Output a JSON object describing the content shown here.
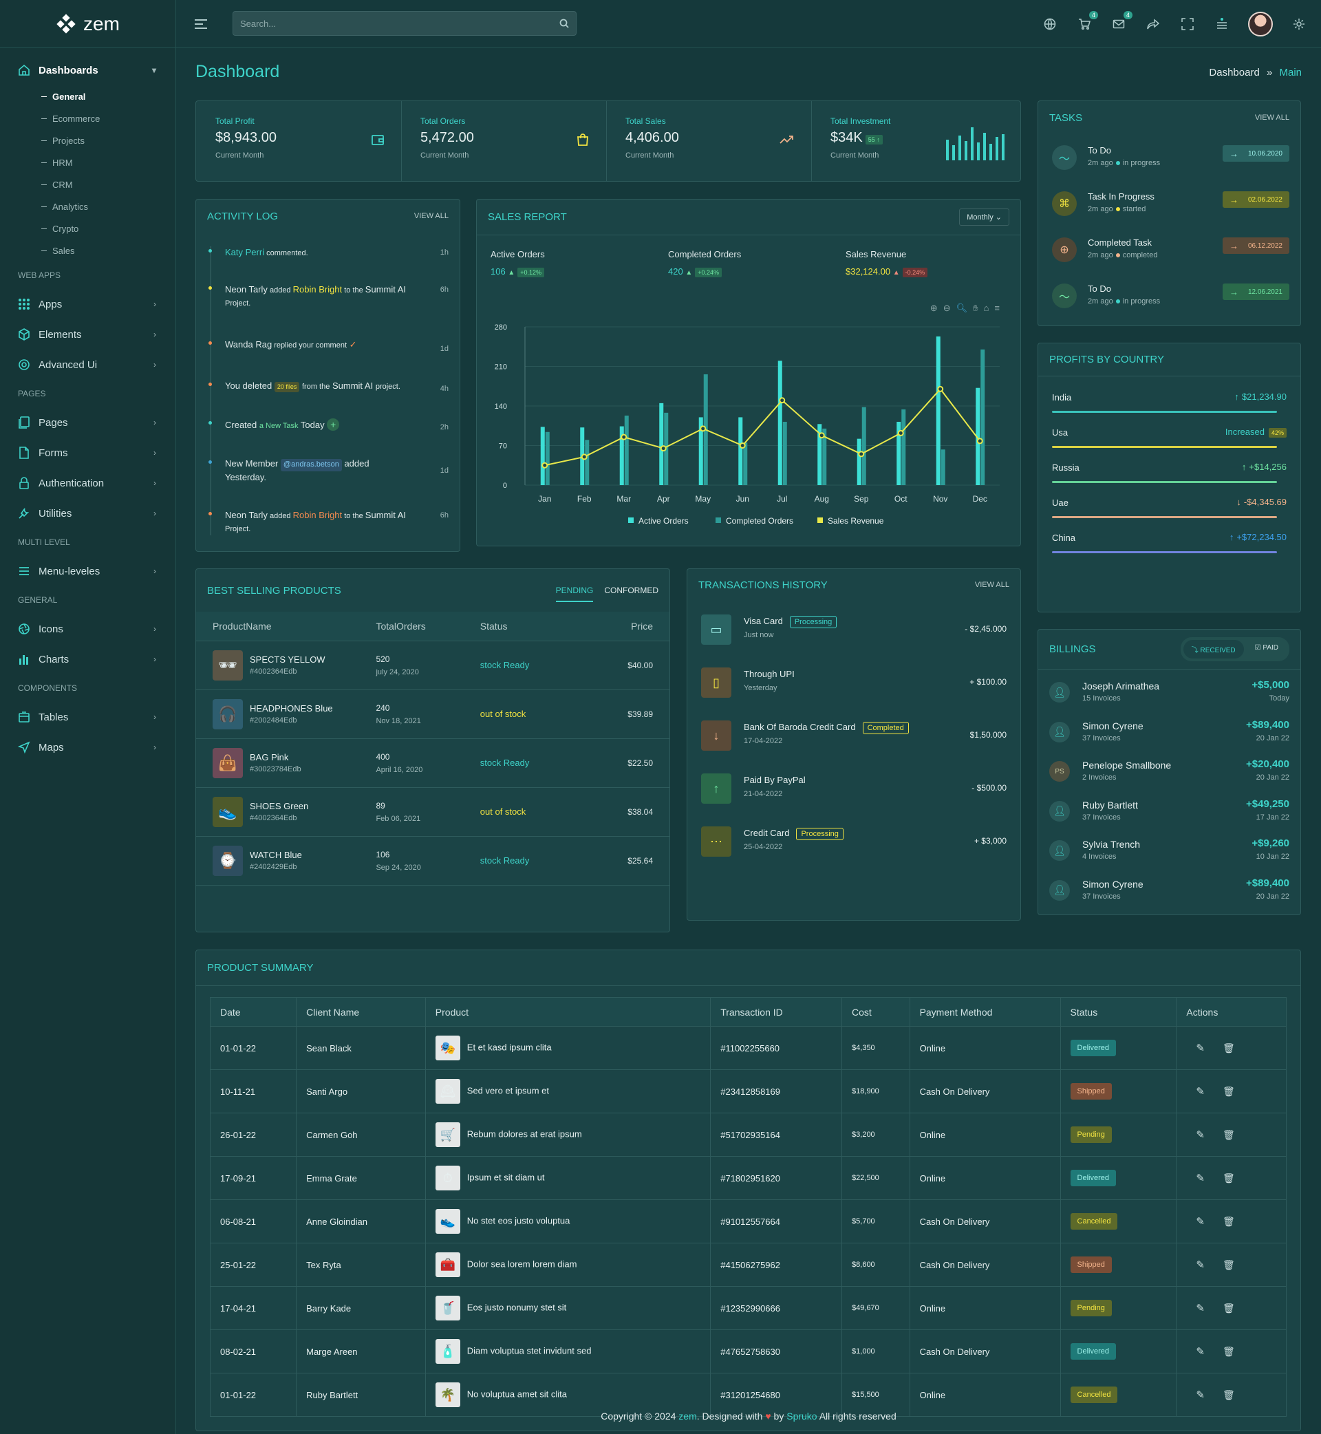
{
  "brand": "zem",
  "sidebar": {
    "dashboards": "Dashboards",
    "sub": [
      "General",
      "Ecommerce",
      "Projects",
      "HRM",
      "CRM",
      "Analytics",
      "Crypto",
      "Sales"
    ],
    "sec_web": "WEB APPS",
    "apps": "Apps",
    "elements": "Elements",
    "advanced": "Advanced Ui",
    "sec_pages": "PAGES",
    "pages": "Pages",
    "forms": "Forms",
    "auth": "Authentication",
    "utilities": "Utilities",
    "sec_multi": "MULTI LEVEL",
    "menu": "Menu-leveles",
    "sec_general": "GENERAL",
    "icons": "Icons",
    "charts": "Charts",
    "sec_components": "COMPONENTS",
    "tables": "Tables",
    "maps": "Maps"
  },
  "header": {
    "search_placeholder": "Search...",
    "cart_badge": "4",
    "mail_badge": "4"
  },
  "page": {
    "title": "Dashboard",
    "crumb1": "Dashboard",
    "crumb_sep": "»",
    "crumb2": "Main"
  },
  "stats": [
    {
      "label": "Total Profit",
      "value": "$8,943.00",
      "sub": "Current Month"
    },
    {
      "label": "Total Orders",
      "value": "5,472.00",
      "sub": "Current Month"
    },
    {
      "label": "Total Sales",
      "value": "4,406.00",
      "sub": "Current Month"
    },
    {
      "label": "Total Investment",
      "value": "$34K",
      "badge": "55",
      "sub": "Current Month"
    }
  ],
  "activity": {
    "title": "ACTIVITY LOG",
    "view_all": "VIEW ALL",
    "items": [
      {
        "time": "1h"
      },
      {
        "time": "6h"
      },
      {
        "time": "1d"
      },
      {
        "time": "4h"
      },
      {
        "time": "2h"
      },
      {
        "time": "1d"
      },
      {
        "time": "6h"
      }
    ],
    "a1_name": "Katy Perri",
    "a1_rest": " commented.",
    "a2_a": "Neon Tarly",
    "a2_b": " added ",
    "a2_c": "Robin Bright",
    "a2_d": " to the ",
    "a2_e": "Summit AI",
    "a2_f": "Project.",
    "a3_a": "Wanda Rag",
    "a3_b": " replied your comment",
    "a4_a": "You deleted",
    "a4_b": "20 files",
    "a4_c": "from the",
    "a4_d": "Summit AI",
    "a4_e": "project.",
    "a5_a": "Created",
    "a5_b": "a New Task",
    "a5_c": "Today",
    "a6_a": "New Member",
    "a6_b": "@andras.betson",
    "a6_c": "added",
    "a6_d": "Yesterday.",
    "a7_a": "Neon Tarly",
    "a7_b": " added ",
    "a7_c": "Robin Bright",
    "a7_d": " to the ",
    "a7_e": "Summit AI",
    "a7_f": "Project."
  },
  "sales": {
    "title": "SALES REPORT",
    "period": "Monthly",
    "m1_label": "Active Orders",
    "m1_val": "106",
    "m1_tag": "+0.12%",
    "m2_label": "Completed Orders",
    "m2_val": "420",
    "m2_tag": "+0.24%",
    "m3_label": "Sales Revenue",
    "m3_val": "$32,124.00",
    "m3_tag": "-0.24%"
  },
  "chart_data": {
    "type": "bar",
    "categories": [
      "Jan",
      "Feb",
      "Mar",
      "Apr",
      "May",
      "Jun",
      "Jul",
      "Aug",
      "Sep",
      "Oct",
      "Nov",
      "Dec"
    ],
    "yticks": [
      0,
      70,
      140,
      210,
      280
    ],
    "ylim": [
      0,
      280
    ],
    "series": [
      {
        "name": "Active Orders",
        "type": "bar",
        "color": "#3de0d6",
        "values": [
          103,
          102,
          104,
          145,
          120,
          120,
          220,
          108,
          82,
          112,
          263,
          172
        ]
      },
      {
        "name": "Completed Orders",
        "type": "bar",
        "color": "#2d9c98",
        "values": [
          94,
          80,
          123,
          128,
          196,
          75,
          112,
          100,
          138,
          134,
          63,
          240
        ]
      },
      {
        "name": "Sales Revenue",
        "type": "line",
        "color": "#e8e84a",
        "values": [
          35,
          50,
          85,
          65,
          100,
          70,
          150,
          88,
          55,
          92,
          170,
          78
        ]
      }
    ]
  },
  "tasks": {
    "title": "TASKS",
    "view_all": "VIEW ALL",
    "items": [
      {
        "name": "To Do",
        "time": "2m ago",
        "state": "in progress",
        "date": "10.06.2020"
      },
      {
        "name": "Task In Progress",
        "time": "2m ago",
        "state": "started",
        "date": "02.06.2022"
      },
      {
        "name": "Completed Task",
        "time": "2m ago",
        "state": "completed",
        "date": "06.12.2022"
      },
      {
        "name": "To Do",
        "time": "2m ago",
        "state": "in progress",
        "date": "12.06.2021"
      }
    ]
  },
  "profits": {
    "title": "PROFITS BY COUNTRY",
    "items": [
      {
        "country": "India",
        "value": "$21,234.90",
        "progress": 0.96
      },
      {
        "country": "Usa",
        "value": "Increased",
        "badge": "42%",
        "progress": 0.96
      },
      {
        "country": "Russia",
        "value": "+$14,256",
        "progress": 0.96
      },
      {
        "country": "Uae",
        "value": "-$4,345.69",
        "progress": 0.96
      },
      {
        "country": "China",
        "value": "+$72,234.50",
        "progress": 0.96
      }
    ]
  },
  "best": {
    "title": "BEST SELLING PRODUCTS",
    "tab1": "PENDING",
    "tab2": "CONFORMED",
    "cols": [
      "ProductName",
      "TotalOrders",
      "Status",
      "Price"
    ],
    "rows": [
      {
        "name": "SPECTS YELLOW",
        "id": "#4002364Edb",
        "orders": "520",
        "date": "july 24, 2020",
        "status": "stock Ready",
        "price": "$40.00"
      },
      {
        "name": "HEADPHONES Blue",
        "id": "#2002484Edb",
        "orders": "240",
        "date": "Nov 18, 2021",
        "status": "out of stock",
        "price": "$39.89"
      },
      {
        "name": "BAG Pink",
        "id": "#30023784Edb",
        "orders": "400",
        "date": "April 16, 2020",
        "status": "stock Ready",
        "price": "$22.50"
      },
      {
        "name": "SHOES Green",
        "id": "#4002364Edb",
        "orders": "89",
        "date": "Feb 06, 2021",
        "status": "out of stock",
        "price": "$38.04"
      },
      {
        "name": "WATCH Blue",
        "id": "#2402429Edb",
        "orders": "106",
        "date": "Sep 24, 2020",
        "status": "stock Ready",
        "price": "$25.64"
      }
    ]
  },
  "tx": {
    "title": "TRANSACTIONS HISTORY",
    "view_all": "VIEW ALL",
    "items": [
      {
        "name": "Visa Card",
        "badge": "Processing",
        "sub": "Just now",
        "amount": "- $2,45.000"
      },
      {
        "name": "Through UPI",
        "sub": "Yesterday",
        "amount": "+ $100.00"
      },
      {
        "name": "Bank Of Baroda Credit Card",
        "badge": "Completed",
        "sub": "17-04-2022",
        "amount": "$1,50.000"
      },
      {
        "name": "Paid By PayPal",
        "sub": "21-04-2022",
        "amount": "- $500.00"
      },
      {
        "name": "Credit Card",
        "badge": "Processing",
        "sub": "25-04-2022",
        "amount": "+ $3,000"
      }
    ]
  },
  "billings": {
    "title": "BILLINGS",
    "received": "RECEIVED",
    "paid": "PAID",
    "items": [
      {
        "name": "Joseph Arimathea",
        "sub": "15 Invoices",
        "amount": "+$5,000",
        "date": "Today"
      },
      {
        "name": "Simon Cyrene",
        "sub": "37 Invoices",
        "amount": "+$89,400",
        "date": "20 Jan 22"
      },
      {
        "name": "Penelope Smallbone",
        "sub": "2 Invoices",
        "amount": "+$20,400",
        "date": "20 Jan 22",
        "initials": "PS"
      },
      {
        "name": "Ruby Bartlett",
        "sub": "37 Invoices",
        "amount": "+$49,250",
        "date": "17 Jan 22"
      },
      {
        "name": "Sylvia Trench",
        "sub": "4 Invoices",
        "amount": "+$9,260",
        "date": "10 Jan 22"
      },
      {
        "name": "Simon Cyrene",
        "sub": "37 Invoices",
        "amount": "+$89,400",
        "date": "20 Jan 22"
      }
    ]
  },
  "summary": {
    "title": "PRODUCT SUMMARY",
    "cols": [
      "Date",
      "Client Name",
      "Product",
      "Transaction ID",
      "Cost",
      "Payment Method",
      "Status",
      "Actions"
    ],
    "rows": [
      {
        "date": "01-01-22",
        "client": "Sean Black",
        "product": "Et et kasd ipsum clita",
        "tid": "#11002255660",
        "cost": "$4,350",
        "method": "Online",
        "status": "Delivered"
      },
      {
        "date": "10-11-21",
        "client": "Santi Argo",
        "product": "Sed vero et ipsum et",
        "tid": "#23412858169",
        "cost": "$18,900",
        "method": "Cash On Delivery",
        "status": "Shipped"
      },
      {
        "date": "26-01-22",
        "client": "Carmen Goh",
        "product": "Rebum dolores at erat ipsum",
        "tid": "#51702935164",
        "cost": "$3,200",
        "method": "Online",
        "status": "Pending"
      },
      {
        "date": "17-09-21",
        "client": "Emma Grate",
        "product": "Ipsum et sit diam ut",
        "tid": "#71802951620",
        "cost": "$22,500",
        "method": "Online",
        "status": "Delivered"
      },
      {
        "date": "06-08-21",
        "client": "Anne Gloindian",
        "product": "No stet eos justo voluptua",
        "tid": "#91012557664",
        "cost": "$5,700",
        "method": "Cash On Delivery",
        "status": "Cancelled"
      },
      {
        "date": "25-01-22",
        "client": "Tex Ryta",
        "product": "Dolor sea lorem lorem diam",
        "tid": "#41506275962",
        "cost": "$8,600",
        "method": "Cash On Delivery",
        "status": "Shipped"
      },
      {
        "date": "17-04-21",
        "client": "Barry Kade",
        "product": "Eos justo nonumy stet sit",
        "tid": "#12352990666",
        "cost": "$49,670",
        "method": "Online",
        "status": "Pending"
      },
      {
        "date": "08-02-21",
        "client": "Marge Areen",
        "product": "Diam voluptua stet invidunt sed",
        "tid": "#47652758630",
        "cost": "$1,000",
        "method": "Cash On Delivery",
        "status": "Delivered"
      },
      {
        "date": "01-01-22",
        "client": "Ruby Bartlett",
        "product": "No voluptua amet sit clita",
        "tid": "#31201254680",
        "cost": "$15,500",
        "method": "Online",
        "status": "Cancelled"
      }
    ]
  },
  "footer": {
    "a": "Copyright © 2024 ",
    "b": "zem",
    "c": ". Designed with ",
    "d": " by ",
    "e": "Spruko",
    "f": " All rights reserved"
  }
}
